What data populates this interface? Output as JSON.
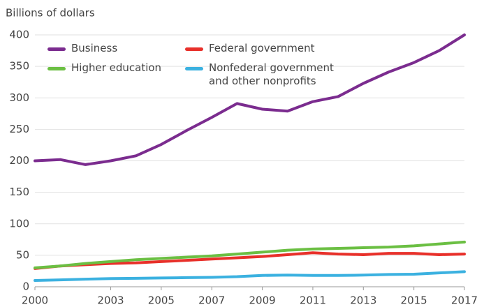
{
  "chart_data": {
    "type": "line",
    "y_label": "Billions of dollars",
    "x": [
      2000,
      2001,
      2002,
      2003,
      2004,
      2005,
      2006,
      2007,
      2008,
      2009,
      2010,
      2011,
      2012,
      2013,
      2014,
      2015,
      2016,
      2017
    ],
    "xlim": [
      2000,
      2017
    ],
    "xticks": [
      2000,
      2003,
      2005,
      2007,
      2009,
      2011,
      2013,
      2015,
      2017
    ],
    "ylim": [
      0,
      400
    ],
    "yticks": [
      0,
      50,
      100,
      150,
      200,
      250,
      300,
      350,
      400
    ],
    "grid": true,
    "series": [
      {
        "name": "Business",
        "color": "#7b2c8f",
        "values": [
          200,
          202,
          194,
          200,
          208,
          226,
          248,
          269,
          291,
          282,
          279,
          294,
          302,
          323,
          341,
          356,
          375,
          400
        ]
      },
      {
        "name": "Federal government",
        "color": "#e8302a",
        "values": [
          29,
          33,
          35,
          37,
          38,
          40,
          42,
          44,
          46,
          48,
          51,
          54,
          52,
          51,
          53,
          53,
          51,
          52
        ]
      },
      {
        "name": "Higher education",
        "color": "#6bbf43",
        "values": [
          30,
          33,
          37,
          40,
          43,
          45,
          47,
          49,
          52,
          55,
          58,
          60,
          61,
          62,
          63,
          65,
          68,
          71
        ]
      },
      {
        "name": "Nonfederal government\nand other nonprofits",
        "color": "#3bb1e0",
        "values": [
          10,
          11,
          12,
          13,
          13.5,
          14,
          14.5,
          15,
          16,
          18,
          18.5,
          18,
          18,
          18.5,
          19.5,
          20,
          22,
          24
        ]
      }
    ]
  }
}
